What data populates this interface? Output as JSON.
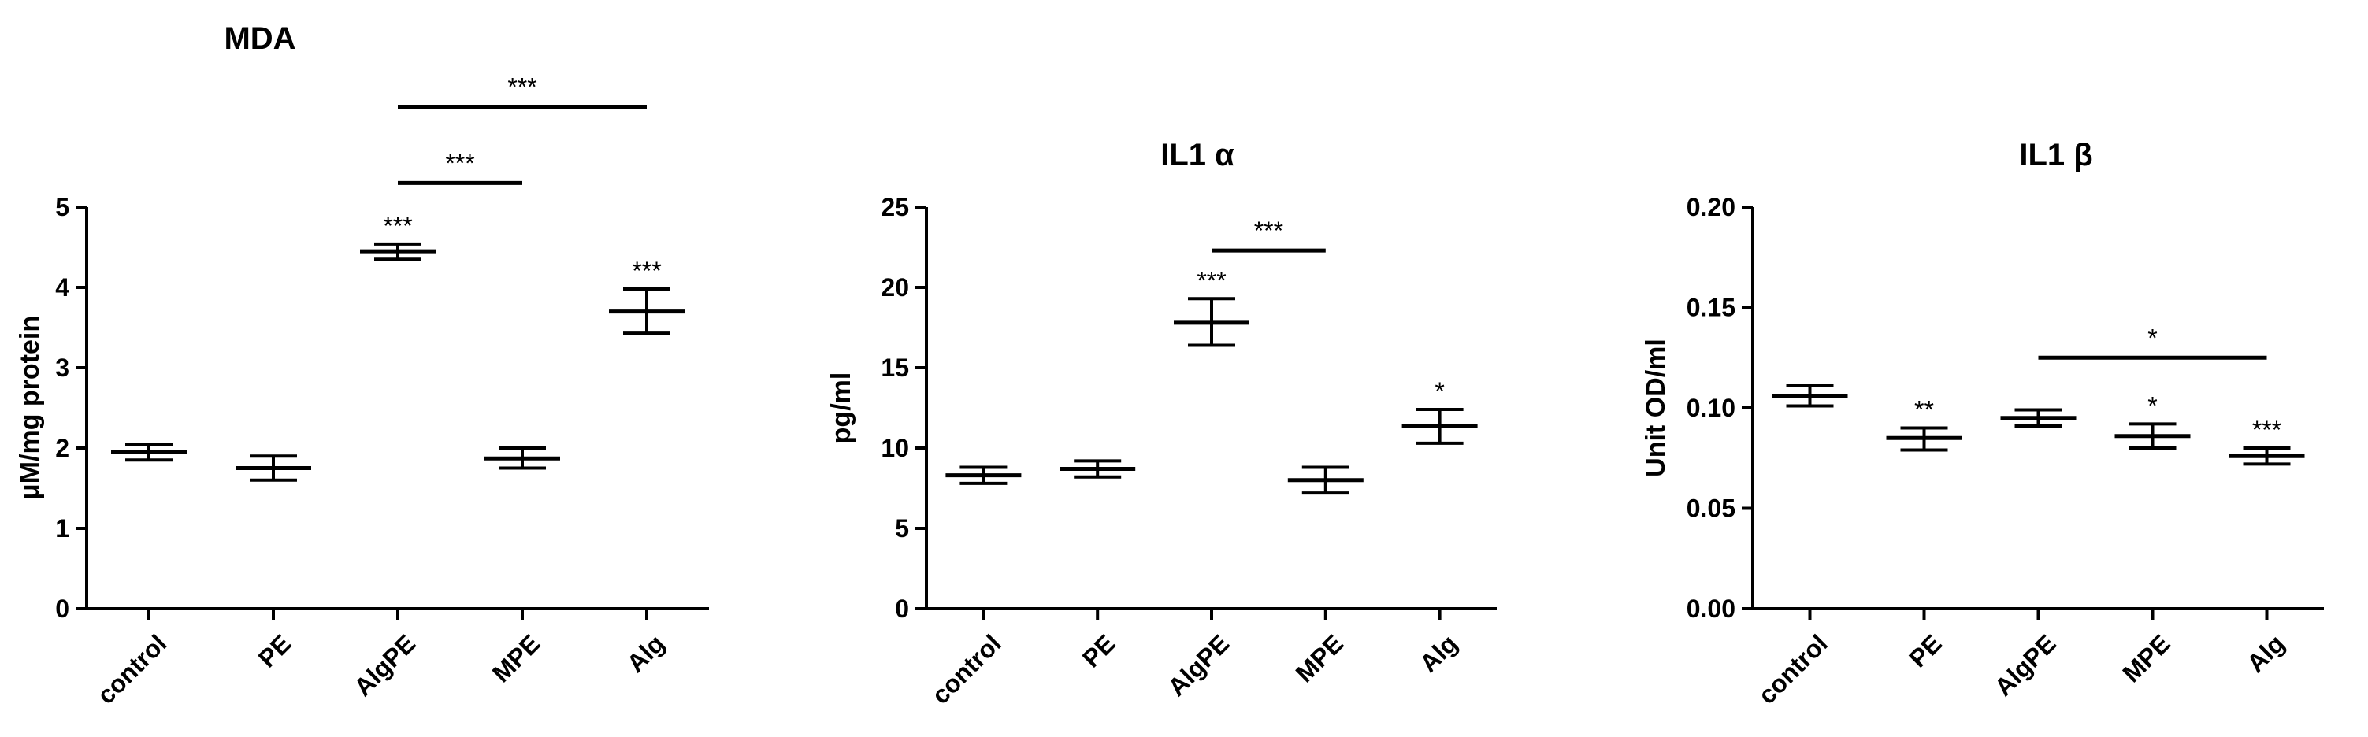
{
  "chart_data": [
    {
      "type": "scatter",
      "title": "MDA",
      "ylabel": "μM/mg protein",
      "categories": [
        "control",
        "PE",
        "AlgPE",
        "MPE",
        "Alg"
      ],
      "ylim": [
        0,
        5
      ],
      "yticks": [
        0,
        1,
        2,
        3,
        4,
        5
      ],
      "ytick_labels": [
        "0",
        "1",
        "2",
        "3",
        "4",
        "5"
      ],
      "means": [
        1.95,
        1.75,
        4.45,
        1.87,
        3.7
      ],
      "err_low": [
        1.85,
        1.6,
        4.35,
        1.75,
        3.43
      ],
      "err_high": [
        2.04,
        1.9,
        4.54,
        2.0,
        3.98
      ],
      "point_labels": [
        "",
        "",
        "***",
        "",
        "***"
      ],
      "brackets": [
        {
          "from": "AlgPE",
          "to": "MPE",
          "y": 5.3,
          "label": "***"
        },
        {
          "from": "AlgPE",
          "to": "Alg",
          "y": 6.25,
          "label": "***"
        }
      ]
    },
    {
      "type": "scatter",
      "title": "IL1 α",
      "ylabel": "pg/ml",
      "categories": [
        "control",
        "PE",
        "AlgPE",
        "MPE",
        "Alg"
      ],
      "ylim": [
        0,
        25
      ],
      "yticks": [
        0,
        5,
        10,
        15,
        20,
        25
      ],
      "ytick_labels": [
        "0",
        "5",
        "10",
        "15",
        "20",
        "25"
      ],
      "means": [
        8.3,
        8.7,
        17.8,
        8.0,
        11.4
      ],
      "err_low": [
        7.8,
        8.2,
        16.4,
        7.2,
        10.3
      ],
      "err_high": [
        8.8,
        9.2,
        19.3,
        8.8,
        12.4
      ],
      "point_labels": [
        "",
        "",
        "***",
        "",
        "*"
      ],
      "brackets": [
        {
          "from": "AlgPE",
          "to": "MPE",
          "y": 22.3,
          "label": "***"
        }
      ]
    },
    {
      "type": "scatter",
      "title": "IL1 β",
      "ylabel": "Unit OD/ml",
      "categories": [
        "control",
        "PE",
        "AlgPE",
        "MPE",
        "Alg"
      ],
      "ylim": [
        0,
        0.2
      ],
      "yticks": [
        0,
        0.05,
        0.1,
        0.15,
        0.2
      ],
      "ytick_labels": [
        "0.00",
        "0.05",
        "0.10",
        "0.15",
        "0.20"
      ],
      "means": [
        0.106,
        0.085,
        0.095,
        0.086,
        0.076
      ],
      "err_low": [
        0.101,
        0.079,
        0.091,
        0.08,
        0.072
      ],
      "err_high": [
        0.111,
        0.09,
        0.099,
        0.092,
        0.08
      ],
      "point_labels": [
        "",
        "**",
        "",
        "*",
        "***"
      ],
      "brackets": [
        {
          "from": "AlgPE",
          "to": "Alg",
          "y": 0.125,
          "label": "*"
        }
      ]
    }
  ]
}
